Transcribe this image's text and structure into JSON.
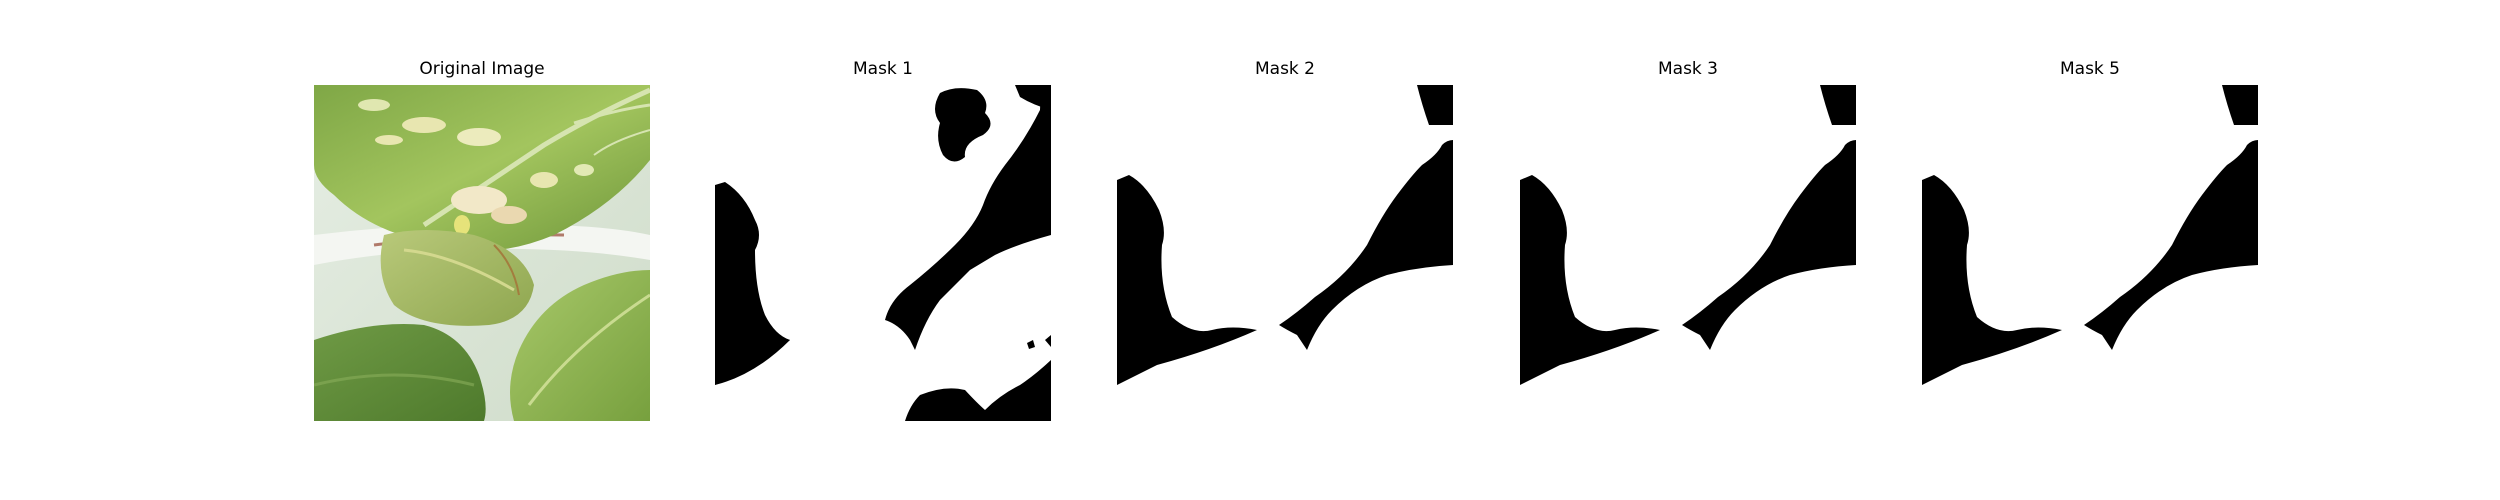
{
  "panels": [
    {
      "title": "Original Image"
    },
    {
      "title": "Mask 1"
    },
    {
      "title": "Mask 2"
    },
    {
      "title": "Mask 3"
    },
    {
      "title": "Mask 5"
    }
  ],
  "colors": {
    "background": "#ffffff",
    "mask_foreground": "#000000",
    "mask_background": "#ffffff",
    "leaf_green": "#8fb24a",
    "leaf_dark_green": "#5f8a33",
    "leaf_highlight": "#c7d97e",
    "pot_white": "#e8eee8"
  }
}
